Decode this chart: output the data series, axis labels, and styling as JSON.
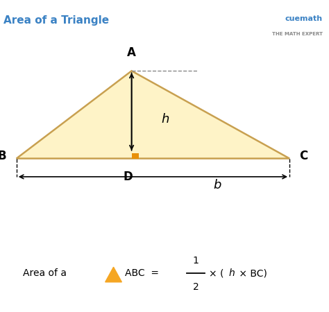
{
  "title": "Area of a Triangle",
  "title_color": "#3B82C4",
  "bg_color": "#ffffff",
  "triangle_fill": "#FEF3C7",
  "triangle_edge_color": "#C8A050",
  "triangle_edge_width": 1.8,
  "right_angle_color": "#E8900A",
  "arrow_color": "#000000",
  "dashed_line_color": "#888888",
  "vertex_A": [
    0.4,
    0.76
  ],
  "vertex_B": [
    0.05,
    0.4
  ],
  "vertex_C": [
    0.88,
    0.4
  ],
  "vertex_D": [
    0.4,
    0.4
  ],
  "cuemath_color_cue": "#3B82C4",
  "cuemath_color_math": "#F5A623",
  "formula_triangle_color": "#F5A623"
}
